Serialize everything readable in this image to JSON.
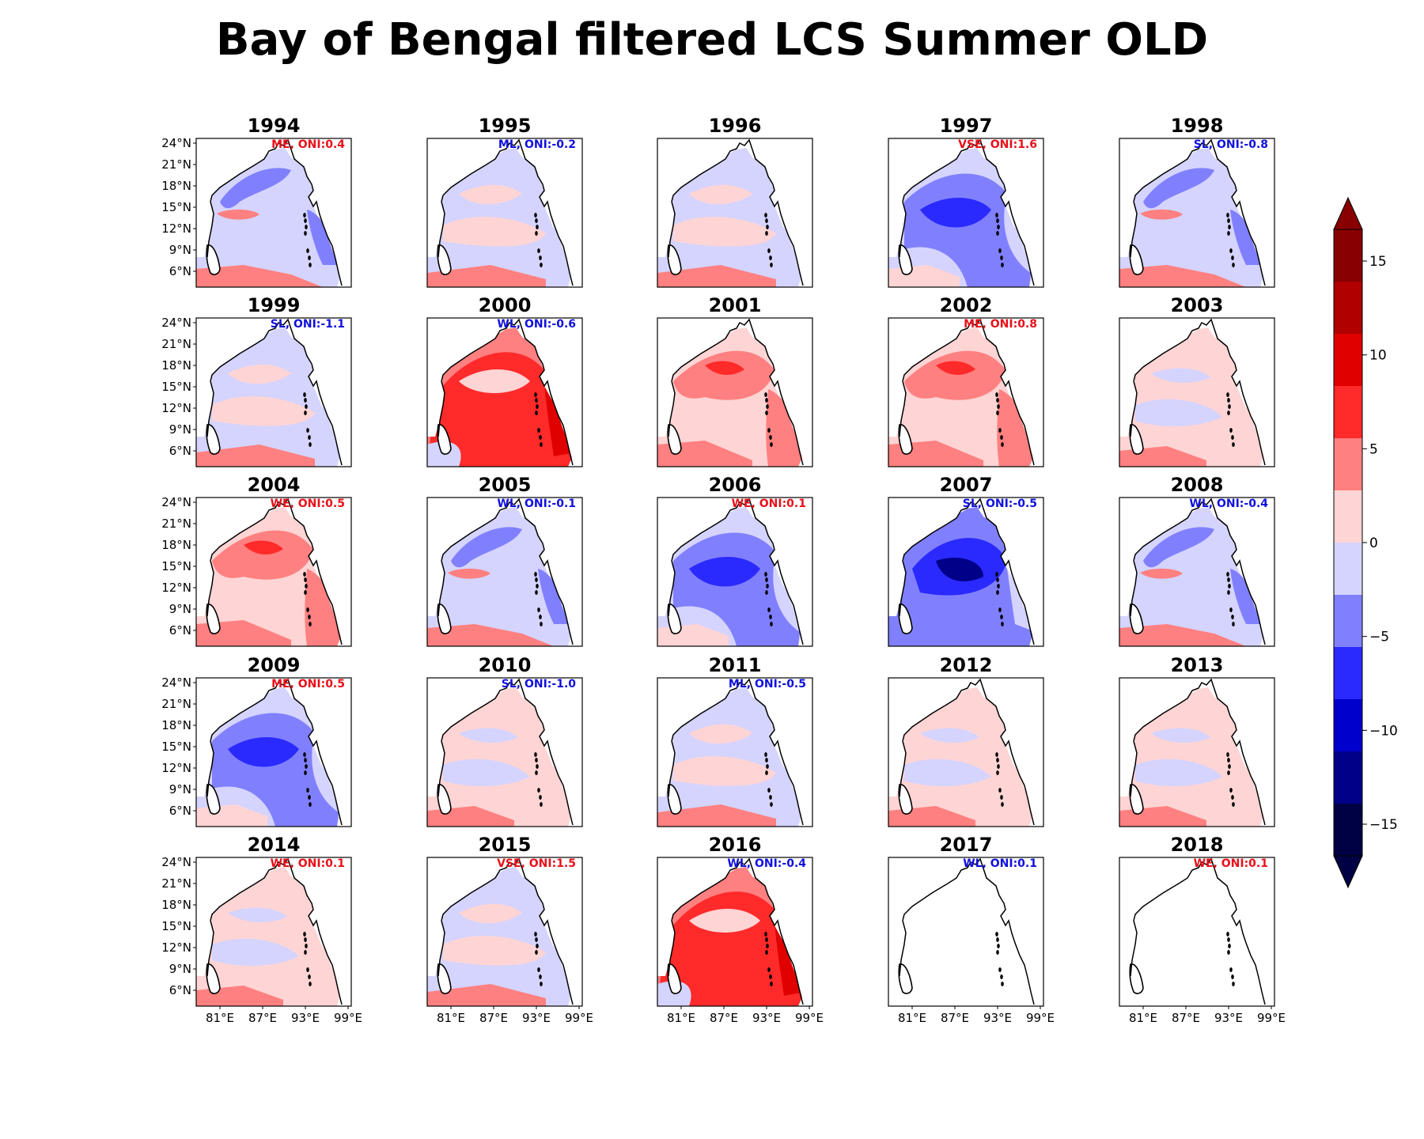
{
  "title": "Bay of Bengal filtered LCS Summer OLD",
  "colors": {
    "pos": "#e8101a",
    "neg": "#1010dd",
    "levels": [
      "#000044",
      "#000088",
      "#0000cc",
      "#2a2aff",
      "#8080ff",
      "#d4d4ff",
      "#ffd4d4",
      "#ff8080",
      "#ff2a2a",
      "#e00000",
      "#b00000",
      "#880000"
    ]
  },
  "lat_ticks": [
    "24°N",
    "21°N",
    "18°N",
    "15°N",
    "12°N",
    "9°N",
    "6°N"
  ],
  "lon_ticks": [
    "81°E",
    "87°E",
    "93°E",
    "99°E"
  ],
  "colorbar": {
    "ticks": [
      "15",
      "10",
      "5",
      "0",
      "−5",
      "−10",
      "−15"
    ],
    "range": [
      -15,
      15
    ]
  },
  "chart_data": {
    "type": "heatmap",
    "title": "Bay of Bengal filtered LCS Summer OLD",
    "panels": [
      {
        "year": "1994",
        "label": "ME, ONI:0.4",
        "phase": "pos",
        "anomaly": "mixed"
      },
      {
        "year": "1995",
        "label": "ML, ONI:-0.2",
        "phase": "neg",
        "anomaly": "weakneg"
      },
      {
        "year": "1996",
        "label": "",
        "phase": "",
        "anomaly": "weakneg"
      },
      {
        "year": "1997",
        "label": "VSE, ONI:1.6",
        "phase": "pos",
        "anomaly": "neg"
      },
      {
        "year": "1998",
        "label": "SL, ONI:-0.8",
        "phase": "neg",
        "anomaly": "mixed"
      },
      {
        "year": "1999",
        "label": "SL, ONI:-1.1",
        "phase": "neg",
        "anomaly": "weakneg"
      },
      {
        "year": "2000",
        "label": "WL, ONI:-0.6",
        "phase": "neg",
        "anomaly": "strongpos"
      },
      {
        "year": "2001",
        "label": "",
        "phase": "",
        "anomaly": "pos"
      },
      {
        "year": "2002",
        "label": "ME, ONI:0.8",
        "phase": "pos",
        "anomaly": "pos"
      },
      {
        "year": "2003",
        "label": "",
        "phase": "",
        "anomaly": "weakpos"
      },
      {
        "year": "2004",
        "label": "WE, ONI:0.5",
        "phase": "pos",
        "anomaly": "pos"
      },
      {
        "year": "2005",
        "label": "WL, ONI:-0.1",
        "phase": "neg",
        "anomaly": "mixed"
      },
      {
        "year": "2006",
        "label": "WE, ONI:0.1",
        "phase": "pos",
        "anomaly": "neg"
      },
      {
        "year": "2007",
        "label": "SL, ONI:-0.5",
        "phase": "neg",
        "anomaly": "strongneg"
      },
      {
        "year": "2008",
        "label": "WL, ONI:-0.4",
        "phase": "neg",
        "anomaly": "mixed"
      },
      {
        "year": "2009",
        "label": "ME, ONI:0.5",
        "phase": "pos",
        "anomaly": "neg"
      },
      {
        "year": "2010",
        "label": "SL, ONI:-1.0",
        "phase": "neg",
        "anomaly": "weakpos"
      },
      {
        "year": "2011",
        "label": "ML, ONI:-0.5",
        "phase": "neg",
        "anomaly": "weakneg"
      },
      {
        "year": "2012",
        "label": "",
        "phase": "",
        "anomaly": "weakpos"
      },
      {
        "year": "2013",
        "label": "",
        "phase": "",
        "anomaly": "weakpos"
      },
      {
        "year": "2014",
        "label": "WE, ONI:0.1",
        "phase": "pos",
        "anomaly": "weakpos"
      },
      {
        "year": "2015",
        "label": "VSE, ONI:1.5",
        "phase": "pos",
        "anomaly": "weakneg"
      },
      {
        "year": "2016",
        "label": "WL, ONI:-0.4",
        "phase": "neg",
        "anomaly": "strongpos"
      },
      {
        "year": "2017",
        "label": "WL, ONI:0.1",
        "phase": "neg",
        "anomaly": "none"
      },
      {
        "year": "2018",
        "label": "WE, ONI:0.1",
        "phase": "pos",
        "anomaly": "none"
      }
    ],
    "colorbar_range": [
      -15,
      15
    ],
    "grid": false
  }
}
